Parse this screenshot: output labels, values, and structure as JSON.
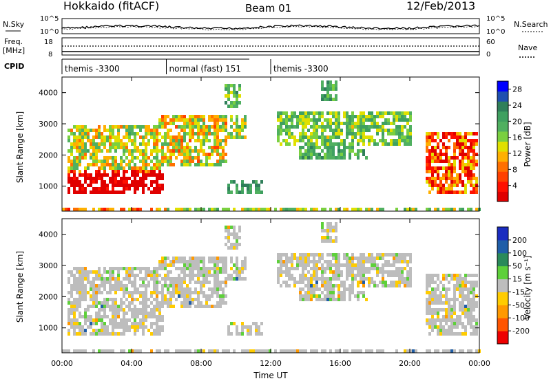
{
  "header": {
    "station": "Hokkaido (fitACF)",
    "beam": "Beam 01",
    "date": "12/Feb/2013"
  },
  "noise_panel": {
    "left_label": "N.Sky",
    "left_ticks": [
      "10^5",
      "10^0"
    ],
    "right_label": "N.Search",
    "right_ticks": [
      "10^5",
      "10^0"
    ]
  },
  "freq_panel": {
    "left_label_1": "Freq.",
    "left_label_2": "[MHz]",
    "left_ticks": [
      "18",
      "8"
    ],
    "right_label": "Nave",
    "right_ticks": [
      "60",
      "0"
    ]
  },
  "cpid": {
    "label": "CPID",
    "segments": [
      {
        "name": "themis -3300",
        "start_h": 0,
        "end_h": 6
      },
      {
        "name": "normal (fast) 151",
        "start_h": 6,
        "end_h": 12
      },
      {
        "name": "themis -3300",
        "start_h": 12,
        "end_h": 24
      }
    ]
  },
  "colors": {
    "power_scale": [
      "#0000ff",
      "#1f4fb0",
      "#2f7f5a",
      "#3fa060",
      "#50b060",
      "#7ad040",
      "#e0e000",
      "#ffb000",
      "#ff7000",
      "#ff4000",
      "#ff1000",
      "#e00000"
    ],
    "velocity_scale": [
      "#1a2cc0",
      "#1f5ea8",
      "#2a8a5a",
      "#5ed03a",
      "#bdbdbd",
      "#ffcc00",
      "#ff9900",
      "#ff5500",
      "#ee0000"
    ]
  },
  "chart_data": [
    {
      "type": "heatmap",
      "title": "",
      "xlabel": "Time UT",
      "ylabel": "Slant Range [km]",
      "x_ticks": [
        "00:00",
        "04:00",
        "08:00",
        "12:00",
        "16:00",
        "20:00",
        "00:00"
      ],
      "xlim_h": [
        0,
        24
      ],
      "y_ticks": [
        1000,
        2000,
        3000,
        4000
      ],
      "ylim": [
        200,
        4500
      ],
      "colorbar": {
        "label": "Power [dB]",
        "ticks": [
          4,
          8,
          12,
          16,
          20,
          24,
          28
        ],
        "range": [
          0,
          30
        ]
      }
    },
    {
      "type": "heatmap",
      "title": "",
      "xlabel": "Time UT",
      "ylabel": "Slant Range [km]",
      "x_ticks": [
        "00:00",
        "04:00",
        "08:00",
        "12:00",
        "16:00",
        "20:00",
        "00:00"
      ],
      "xlim_h": [
        0,
        24
      ],
      "y_ticks": [
        1000,
        2000,
        3000,
        4000
      ],
      "ylim": [
        200,
        4500
      ],
      "colorbar": {
        "label": "Velocity [m s⁻¹]",
        "ticks": [
          200,
          100,
          50,
          15,
          -15,
          -50,
          -100,
          -200
        ]
      }
    }
  ]
}
